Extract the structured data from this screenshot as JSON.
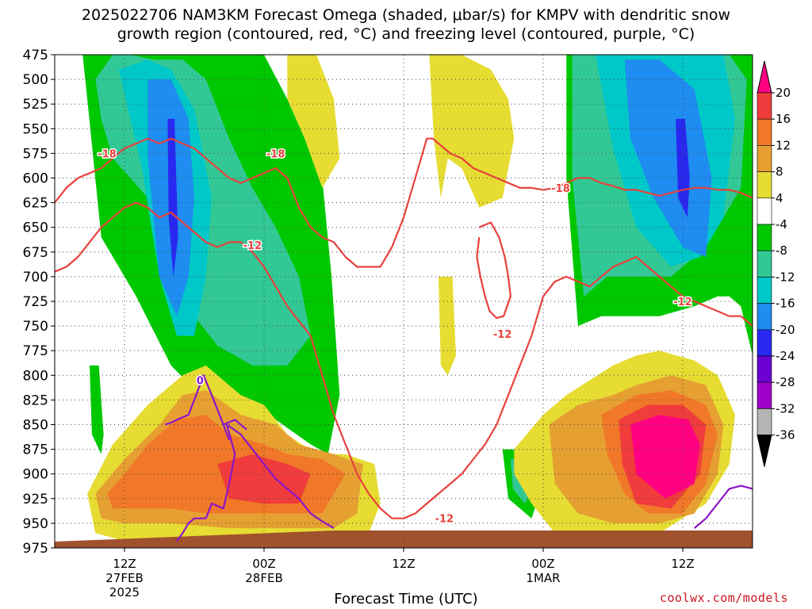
{
  "title_line1": "2025022706 NAM3KM Forecast Omega (shaded, μbar/s) for KMPV with dendritic snow",
  "title_line2": "growth region (contoured, red, °C) and freezing level (contoured, purple, °C)",
  "credit": "coolwx.com/models",
  "chart_data": {
    "type": "heatmap",
    "title": "2025022706 NAM3KM Forecast Omega (shaded, μbar/s) for KMPV with dendritic snow growth region (contoured, red, °C) and freezing level (contoured, purple, °C)",
    "xlabel": "Forecast Time (UTC)",
    "ylabel": "",
    "y_axis": {
      "unit": "hPa",
      "inverted": true,
      "range": [
        975,
        475
      ],
      "ticks": [
        475,
        500,
        525,
        550,
        575,
        600,
        625,
        650,
        675,
        700,
        725,
        750,
        775,
        800,
        825,
        850,
        875,
        900,
        925,
        950,
        975
      ]
    },
    "x_axis": {
      "range_hours": [
        0,
        60
      ],
      "ticks": [
        {
          "hour": 6,
          "lines": [
            "12Z",
            "27FEB",
            "2025"
          ]
        },
        {
          "hour": 18,
          "lines": [
            "00Z",
            "28FEB"
          ]
        },
        {
          "hour": 30,
          "lines": [
            "12Z"
          ]
        },
        {
          "hour": 42,
          "lines": [
            "00Z",
            "1MAR"
          ]
        },
        {
          "hour": 54,
          "lines": [
            "12Z"
          ]
        }
      ]
    },
    "grid": true,
    "colorbar": {
      "labels": [
        20,
        16,
        12,
        8,
        4,
        -4,
        -8,
        -12,
        -16,
        -20,
        -24,
        -28,
        -32,
        -36
      ],
      "colors": [
        "#ff0080",
        "#f03c3c",
        "#f07828",
        "#e6a032",
        "#e6dc32",
        "#ffffff",
        "#00c800",
        "#32c896",
        "#00c8c8",
        "#1e8cf0",
        "#2828f0",
        "#6a00d2",
        "#a000c8",
        "#b4b4b4",
        "#000000"
      ]
    },
    "omega_regions": [
      {
        "level": -4,
        "t": [
          2.4,
          3.5,
          5.5,
          8,
          11,
          13,
          16.5,
          18,
          20,
          23,
          23.8,
          24.5,
          23.5,
          22,
          19,
          16,
          12.5,
          10,
          7,
          4,
          2.8
        ],
        "p": [
          475,
          475,
          475,
          475,
          475,
          475,
          475,
          475,
          520,
          600,
          700,
          820,
          880,
          870,
          845,
          830,
          820,
          790,
          720,
          660,
          520
        ]
      },
      {
        "level": -8,
        "t": [
          3.5,
          5,
          6.5,
          8.5,
          11,
          13,
          15,
          17,
          19,
          21,
          22,
          20,
          17,
          14,
          12,
          10.5,
          9,
          8,
          6.5,
          5,
          4
        ],
        "p": [
          500,
          475,
          475,
          480,
          480,
          500,
          560,
          610,
          650,
          700,
          760,
          790,
          790,
          770,
          740,
          700,
          650,
          620,
          600,
          580,
          540
        ]
      },
      {
        "level": -12,
        "t": [
          5.5,
          8,
          10,
          12,
          13.5,
          13,
          12,
          10.5,
          9,
          7.5
        ],
        "p": [
          490,
          480,
          490,
          530,
          620,
          700,
          760,
          760,
          700,
          590
        ]
      },
      {
        "level": -16,
        "t": [
          8,
          10,
          11.5,
          12,
          11.5,
          10.5,
          9,
          8
        ],
        "p": [
          500,
          500,
          540,
          620,
          700,
          740,
          700,
          580
        ]
      },
      {
        "level": -20,
        "t": [
          9.7,
          10.3,
          10.6,
          10.2,
          9.8
        ],
        "p": [
          540,
          540,
          660,
          700,
          640
        ]
      },
      {
        "level": -4,
        "t": [
          3,
          3.8,
          4.2,
          4,
          3.2
        ],
        "p": [
          790,
          790,
          860,
          880,
          860
        ]
      },
      {
        "level": -4,
        "t": [
          44,
          46,
          50,
          55,
          58,
          60,
          60,
          59,
          58,
          57,
          55,
          52,
          49,
          47,
          45,
          44
        ],
        "p": [
          475,
          475,
          475,
          475,
          475,
          475,
          780,
          730,
          720,
          720,
          730,
          740,
          740,
          740,
          750,
          600
        ]
      },
      {
        "level": -8,
        "t": [
          44.5,
          47,
          51,
          55,
          58,
          59.5,
          59,
          57,
          55,
          53,
          50,
          47.5,
          45.5,
          44.5
        ],
        "p": [
          475,
          475,
          475,
          475,
          475,
          500,
          610,
          650,
          680,
          700,
          700,
          700,
          720,
          600
        ]
      },
      {
        "level": -12,
        "t": [
          46.5,
          50,
          53.5,
          57.5,
          58.5,
          57.5,
          55.5,
          53,
          50,
          48
        ],
        "p": [
          475,
          475,
          475,
          475,
          540,
          640,
          680,
          690,
          650,
          570
        ]
      },
      {
        "level": -16,
        "t": [
          49,
          52,
          55,
          56.5,
          56,
          54,
          51.5,
          49.5
        ],
        "p": [
          480,
          480,
          510,
          600,
          680,
          670,
          620,
          560
        ]
      },
      {
        "level": -20,
        "t": [
          53.4,
          54.2,
          54.6,
          54.4,
          53.6
        ],
        "p": [
          540,
          540,
          600,
          640,
          620
        ]
      },
      {
        "level": -4,
        "t": [
          38.5,
          40.5,
          42,
          41,
          39
        ],
        "p": [
          875,
          875,
          910,
          945,
          925
        ]
      },
      {
        "level": -8,
        "t": [
          39.2,
          40.6,
          41.2,
          40.4,
          39.4
        ],
        "p": [
          885,
          885,
          915,
          930,
          915
        ]
      },
      {
        "level": 4,
        "t": [
          20,
          21,
          22.5,
          24,
          24.5,
          23,
          21.5,
          20
        ],
        "p": [
          475,
          475,
          475,
          520,
          580,
          610,
          560,
          520
        ]
      },
      {
        "level": 4,
        "t": [
          32.2,
          35,
          37.5,
          39,
          39.5,
          38.5,
          36.5,
          35,
          33.8,
          33.2,
          32.6
        ],
        "p": [
          475,
          475,
          490,
          520,
          560,
          620,
          630,
          590,
          580,
          620,
          560
        ]
      },
      {
        "level": 4,
        "t": [
          33,
          34.2,
          34.5,
          33.8,
          33.2
        ],
        "p": [
          700,
          700,
          780,
          800,
          790
        ]
      },
      {
        "level": 4,
        "t": [
          2.8,
          5,
          8,
          11,
          13,
          16,
          18,
          20,
          22.5,
          25,
          27.5,
          28,
          27,
          25,
          20,
          14,
          9,
          6,
          3.5
        ],
        "p": [
          920,
          870,
          830,
          800,
          790,
          820,
          830,
          860,
          880,
          880,
          890,
          930,
          960,
          968,
          968,
          968,
          968,
          968,
          960
        ]
      },
      {
        "level": 8,
        "t": [
          3.5,
          6,
          9,
          11,
          13,
          16,
          19,
          21,
          24,
          26.5,
          26,
          24,
          20,
          15,
          10,
          6,
          4
        ],
        "p": [
          920,
          885,
          850,
          820,
          815,
          840,
          850,
          870,
          880,
          890,
          940,
          955,
          955,
          955,
          950,
          950,
          945
        ]
      },
      {
        "level": 12,
        "t": [
          4.5,
          6,
          8,
          10.5,
          13,
          15,
          18,
          20,
          23,
          25,
          23,
          20,
          16,
          13,
          10,
          7,
          5
        ],
        "p": [
          920,
          900,
          870,
          845,
          840,
          860,
          870,
          880,
          885,
          900,
          940,
          940,
          940,
          940,
          935,
          935,
          935
        ]
      },
      {
        "level": 16,
        "t": [
          14,
          17,
          20,
          22,
          21,
          18,
          15
        ],
        "p": [
          890,
          880,
          890,
          900,
          930,
          930,
          925
        ]
      },
      {
        "level": 4,
        "t": [
          39.5,
          42,
          44,
          46,
          48,
          50,
          52,
          55,
          57,
          58.5,
          58,
          56,
          52,
          48,
          45,
          43,
          41,
          39.5
        ],
        "p": [
          875,
          840,
          820,
          805,
          790,
          780,
          775,
          785,
          800,
          840,
          890,
          930,
          960,
          968,
          968,
          960,
          930,
          900
        ]
      },
      {
        "level": 8,
        "t": [
          42.5,
          45,
          48,
          50,
          53,
          56,
          57.5,
          57,
          55,
          52,
          48,
          45,
          43
        ],
        "p": [
          850,
          830,
          820,
          810,
          800,
          810,
          850,
          900,
          940,
          950,
          950,
          940,
          910
        ]
      },
      {
        "level": 12,
        "t": [
          47,
          50,
          53,
          56,
          57,
          56,
          54,
          51,
          49,
          47.5
        ],
        "p": [
          840,
          820,
          815,
          830,
          860,
          910,
          940,
          940,
          920,
          880
        ]
      },
      {
        "level": 16,
        "t": [
          48.5,
          51,
          54,
          56,
          55.5,
          53,
          50,
          48.8
        ],
        "p": [
          845,
          830,
          830,
          850,
          900,
          935,
          930,
          890
        ]
      },
      {
        "level": 20,
        "t": [
          49.5,
          52,
          54.5,
          55.5,
          55,
          52.5,
          50
        ],
        "p": [
          850,
          840,
          845,
          870,
          910,
          925,
          900
        ]
      }
    ],
    "red_contours": [
      {
        "t": [
          0,
          1,
          2,
          3,
          4,
          5,
          6,
          7,
          8,
          9,
          10,
          11,
          12,
          13,
          14,
          15,
          16,
          17,
          18,
          19,
          20,
          21,
          22,
          23,
          24,
          25,
          26,
          27,
          28,
          29,
          30,
          31,
          32,
          32.5,
          33,
          34,
          35,
          36,
          37,
          38,
          39,
          40,
          41,
          42,
          43,
          44,
          45,
          46,
          47,
          48,
          49,
          50,
          51,
          52,
          53,
          54,
          55,
          56,
          57,
          58,
          59,
          60
        ],
        "p": [
          625,
          610,
          600,
          595,
          590,
          580,
          570,
          565,
          560,
          565,
          560,
          565,
          570,
          580,
          590,
          600,
          605,
          600,
          595,
          590,
          600,
          630,
          650,
          660,
          665,
          680,
          690,
          690,
          690,
          670,
          640,
          600,
          560,
          560,
          565,
          575,
          580,
          590,
          595,
          600,
          605,
          610,
          610,
          612,
          610,
          605,
          600,
          600,
          605,
          608,
          612,
          612,
          615,
          618,
          615,
          612,
          610,
          610,
          612,
          612,
          615,
          620
        ],
        "labels": [
          {
            "t": 4.5,
            "p": 575,
            "text": "-18"
          },
          {
            "t": 19,
            "p": 575,
            "text": "-18"
          },
          {
            "t": 43.5,
            "p": 610,
            "text": "-18"
          }
        ]
      },
      {
        "t": [
          0,
          1,
          2,
          3,
          4,
          5,
          6,
          7,
          8,
          9,
          10,
          11,
          12,
          13,
          14,
          15,
          16,
          17,
          18,
          19,
          20,
          21,
          22,
          23,
          24,
          25,
          26,
          27,
          28,
          29,
          30,
          31,
          32,
          33,
          34,
          35,
          36,
          37,
          38,
          39,
          40,
          41,
          42,
          43,
          44,
          45,
          46,
          47,
          48,
          49,
          50,
          51,
          52,
          53,
          54,
          55,
          56,
          57,
          58,
          59,
          60
        ],
        "p": [
          695,
          690,
          680,
          665,
          650,
          640,
          630,
          625,
          630,
          640,
          635,
          645,
          655,
          665,
          670,
          665,
          665,
          675,
          690,
          710,
          730,
          745,
          760,
          800,
          840,
          870,
          900,
          920,
          935,
          945,
          945,
          940,
          930,
          920,
          910,
          900,
          885,
          870,
          850,
          820,
          790,
          760,
          720,
          705,
          700,
          705,
          710,
          700,
          690,
          685,
          680,
          690,
          700,
          710,
          720,
          725,
          730,
          735,
          740,
          740,
          750,
          760
        ],
        "labels": [
          {
            "t": 17,
            "p": 668,
            "text": "-12"
          },
          {
            "t": 33.5,
            "p": 945,
            "text": "-12"
          },
          {
            "t": 38.5,
            "p": 758,
            "text": "-12"
          },
          {
            "t": 54,
            "p": 725,
            "text": "-12"
          }
        ]
      },
      {
        "t": [
          36.5,
          37.5,
          38.2,
          38.7,
          39,
          39.2,
          38.6,
          38,
          37.4,
          37,
          36.6,
          36.3,
          36.5
        ],
        "p": [
          650,
          645,
          660,
          680,
          700,
          720,
          740,
          742,
          735,
          720,
          700,
          680,
          660
        ]
      }
    ],
    "purple_contours": [
      {
        "t": [
          10.5,
          11,
          11.5,
          12,
          13,
          13.5,
          14.5,
          15,
          15.5,
          14.8,
          16,
          17,
          18,
          19,
          20,
          21,
          22,
          23,
          24
        ],
        "p": [
          968,
          960,
          950,
          945,
          945,
          930,
          935,
          910,
          880,
          850,
          860,
          875,
          890,
          905,
          915,
          925,
          940,
          948,
          955
        ],
        "labels": [
          {
            "t": 12.5,
            "p": 805,
            "text": "0"
          }
        ]
      },
      {
        "t": [
          9.5,
          10,
          10.5,
          11.5,
          12,
          12.8,
          13.5,
          14.5,
          15,
          14.5,
          15.5,
          16.5
        ],
        "p": [
          850,
          848,
          845,
          840,
          825,
          800,
          820,
          850,
          865,
          850,
          845,
          855
        ]
      },
      {
        "t": [
          55,
          56,
          57,
          58,
          59,
          60
        ],
        "p": [
          955,
          945,
          930,
          915,
          912,
          915
        ]
      }
    ]
  }
}
